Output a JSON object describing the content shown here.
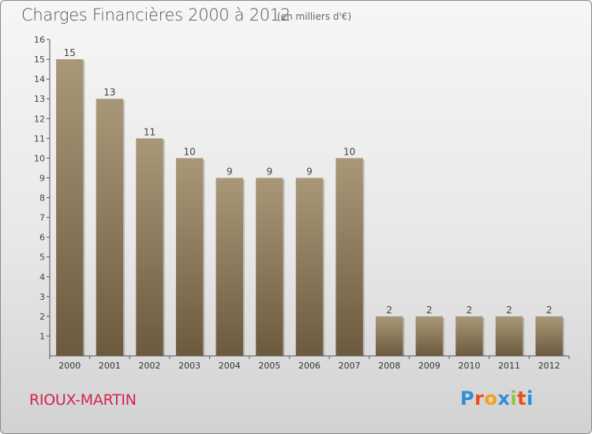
{
  "header": {
    "title": "Charges Financières 2000 à 2012",
    "subtitle": "(en milliers d'€)"
  },
  "footer": {
    "town": "RIOUX-MARTIN",
    "logo": [
      "P",
      "r",
      "o",
      "x",
      "i",
      "t",
      "i"
    ]
  },
  "colors": {
    "bar_light": "#a89878",
    "bar_dark": "#6c5a3e",
    "town": "#d6234f",
    "logo": [
      "#2e8fd4",
      "#e94d1d",
      "#f5a11a",
      "#2e8fd4",
      "#8cc63f",
      "#e94d1d",
      "#2e8fd4"
    ]
  },
  "chart_data": {
    "type": "bar",
    "title": "Charges Financières 2000 à 2012",
    "subtitle": "(en milliers d'€)",
    "categories": [
      "2000",
      "2001",
      "2002",
      "2003",
      "2004",
      "2005",
      "2006",
      "2007",
      "2008",
      "2009",
      "2010",
      "2011",
      "2012"
    ],
    "values": [
      15,
      13,
      11,
      10,
      9,
      9,
      9,
      10,
      2,
      2,
      2,
      2,
      2
    ],
    "ylim": [
      0,
      16
    ],
    "yticks": [
      1,
      2,
      3,
      4,
      5,
      6,
      7,
      8,
      9,
      10,
      11,
      12,
      13,
      14,
      15,
      16
    ],
    "xlabel": "",
    "ylabel": "",
    "grid": false,
    "legend": "none"
  }
}
